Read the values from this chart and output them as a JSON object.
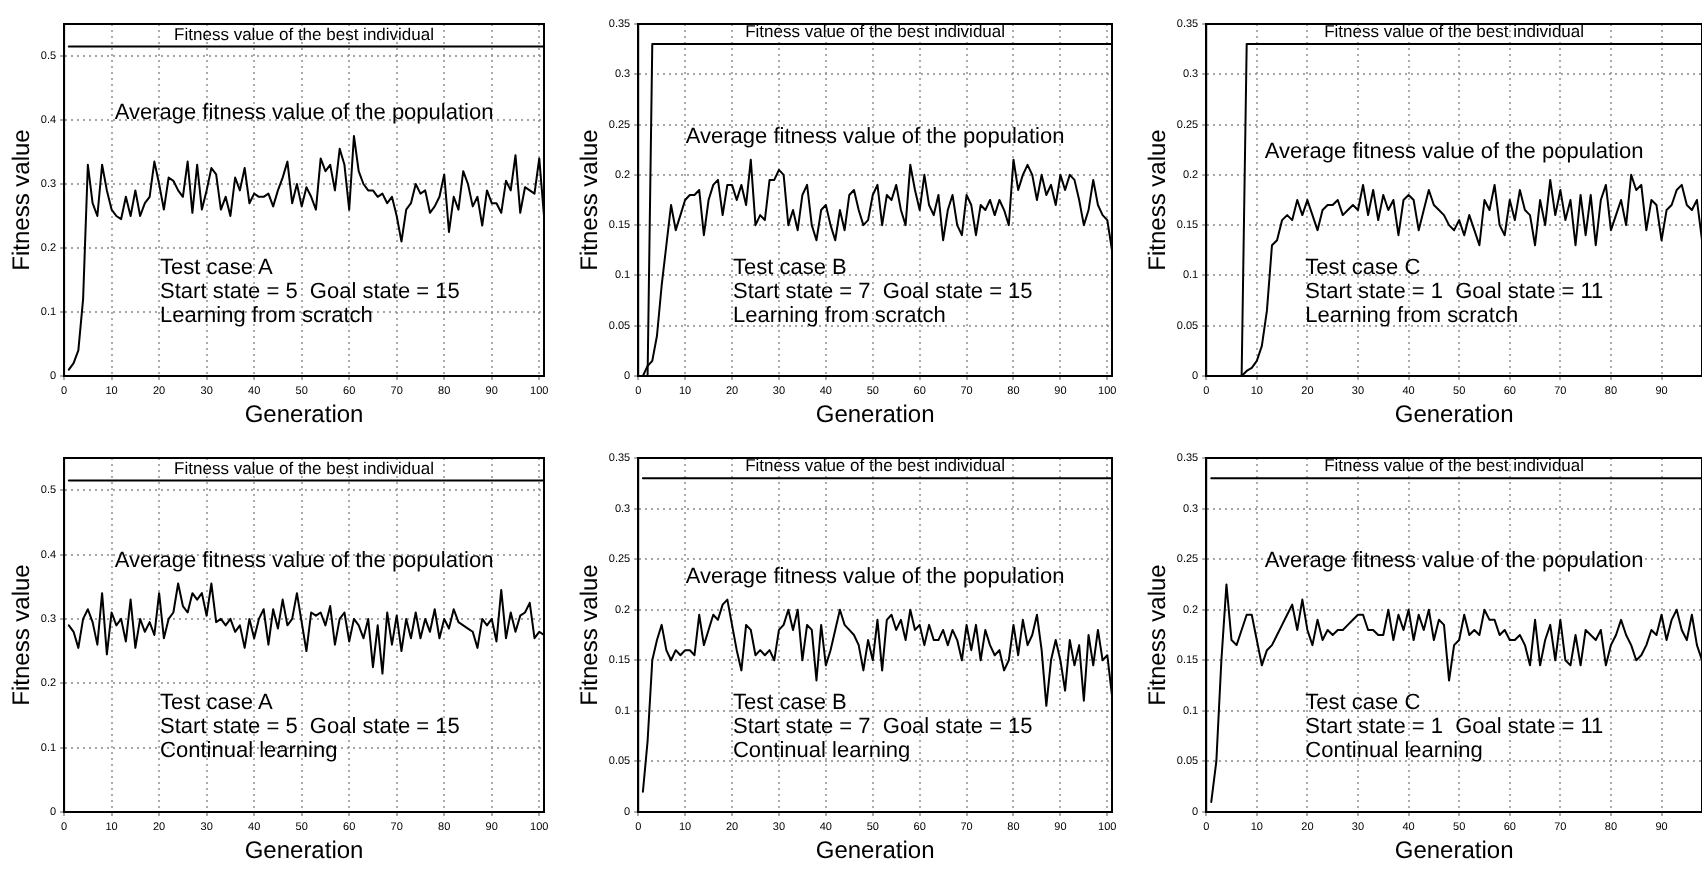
{
  "chart_data": [
    {
      "type": "line",
      "xlabel": "Generation",
      "ylabel": "Fitness value",
      "xlim": [
        0,
        101
      ],
      "ylim": [
        0,
        0.55
      ],
      "xticks": [
        0,
        10,
        20,
        30,
        40,
        50,
        60,
        70,
        80,
        90,
        100
      ],
      "yticks": [
        0,
        0.1,
        0.2,
        0.3,
        0.4,
        0.5
      ],
      "grid": true,
      "annotations": [
        "Test case A",
        "Start state = 5  Goal state = 15",
        "Learning from scratch"
      ],
      "x": [
        1,
        2,
        3,
        4,
        5,
        6,
        7,
        8,
        9,
        10,
        11,
        12,
        13,
        14,
        15,
        16,
        17,
        18,
        19,
        20,
        21,
        22,
        23,
        24,
        25,
        26,
        27,
        28,
        29,
        30,
        31,
        32,
        33,
        34,
        35,
        36,
        37,
        38,
        39,
        40,
        41,
        42,
        43,
        44,
        45,
        46,
        47,
        48,
        49,
        50,
        51,
        52,
        53,
        54,
        55,
        56,
        57,
        58,
        59,
        60,
        61,
        62,
        63,
        64,
        65,
        66,
        67,
        68,
        69,
        70,
        71,
        72,
        73,
        74,
        75,
        76,
        77,
        78,
        79,
        80,
        81,
        82,
        83,
        84,
        85,
        86,
        87,
        88,
        89,
        90,
        91,
        92,
        93,
        94,
        95,
        96,
        97,
        98,
        99,
        100,
        101
      ],
      "series": [
        {
          "name": "Fitness value of the best individual",
          "color": "#000000",
          "x": [
            1,
            101
          ],
          "values": [
            0.515,
            0.515
          ]
        },
        {
          "name": "Average fitness value of the population",
          "color": "#000000",
          "values": [
            0.01,
            0.02,
            0.04,
            0.12,
            0.33,
            0.27,
            0.25,
            0.33,
            0.29,
            0.26,
            0.25,
            0.245,
            0.28,
            0.25,
            0.29,
            0.25,
            0.27,
            0.28,
            0.335,
            0.3,
            0.26,
            0.31,
            0.305,
            0.29,
            0.28,
            0.335,
            0.255,
            0.33,
            0.26,
            0.29,
            0.325,
            0.315,
            0.26,
            0.28,
            0.25,
            0.31,
            0.29,
            0.325,
            0.27,
            0.285,
            0.28,
            0.28,
            0.285,
            0.265,
            0.29,
            0.31,
            0.335,
            0.27,
            0.3,
            0.265,
            0.295,
            0.28,
            0.26,
            0.34,
            0.32,
            0.33,
            0.29,
            0.355,
            0.33,
            0.26,
            0.375,
            0.32,
            0.3,
            0.29,
            0.29,
            0.28,
            0.285,
            0.27,
            0.28,
            0.25,
            0.21,
            0.26,
            0.27,
            0.3,
            0.285,
            0.29,
            0.255,
            0.265,
            0.28,
            0.315,
            0.225,
            0.28,
            0.26,
            0.32,
            0.3,
            0.265,
            0.28,
            0.235,
            0.29,
            0.27,
            0.27,
            0.255,
            0.305,
            0.29,
            0.345,
            0.255,
            0.295,
            0.29,
            0.285,
            0.34,
            0.25
          ]
        }
      ]
    },
    {
      "type": "line",
      "xlabel": "Generation",
      "ylabel": "Fitness value",
      "xlim": [
        0,
        101
      ],
      "ylim": [
        0,
        0.35
      ],
      "xticks": [
        0,
        10,
        20,
        30,
        40,
        50,
        60,
        70,
        80,
        90,
        100
      ],
      "yticks": [
        0,
        0.05,
        0.1,
        0.15,
        0.2,
        0.25,
        0.3,
        0.35
      ],
      "grid": true,
      "annotations": [
        "Test case B",
        "Start state = 7  Goal state = 15",
        "Learning from scratch"
      ],
      "x": [
        1,
        2,
        3,
        4,
        5,
        6,
        7,
        8,
        9,
        10,
        11,
        12,
        13,
        14,
        15,
        16,
        17,
        18,
        19,
        20,
        21,
        22,
        23,
        24,
        25,
        26,
        27,
        28,
        29,
        30,
        31,
        32,
        33,
        34,
        35,
        36,
        37,
        38,
        39,
        40,
        41,
        42,
        43,
        44,
        45,
        46,
        47,
        48,
        49,
        50,
        51,
        52,
        53,
        54,
        55,
        56,
        57,
        58,
        59,
        60,
        61,
        62,
        63,
        64,
        65,
        66,
        67,
        68,
        69,
        70,
        71,
        72,
        73,
        74,
        75,
        76,
        77,
        78,
        79,
        80,
        81,
        82,
        83,
        84,
        85,
        86,
        87,
        88,
        89,
        90,
        91,
        92,
        93,
        94,
        95,
        96,
        97,
        98,
        99,
        100,
        101
      ],
      "series": [
        {
          "name": "Fitness value of the best individual",
          "color": "#000000",
          "x": [
            2,
            3,
            101
          ],
          "values": [
            0,
            0.33,
            0.33
          ]
        },
        {
          "name": "Average fitness value of the population",
          "color": "#000000",
          "values": [
            0,
            0.01,
            0.015,
            0.04,
            0.09,
            0.13,
            0.17,
            0.145,
            0.16,
            0.175,
            0.18,
            0.18,
            0.185,
            0.14,
            0.175,
            0.19,
            0.195,
            0.16,
            0.19,
            0.19,
            0.175,
            0.19,
            0.17,
            0.215,
            0.15,
            0.16,
            0.155,
            0.195,
            0.195,
            0.205,
            0.2,
            0.15,
            0.165,
            0.145,
            0.18,
            0.19,
            0.15,
            0.135,
            0.165,
            0.17,
            0.15,
            0.135,
            0.165,
            0.145,
            0.18,
            0.185,
            0.165,
            0.15,
            0.155,
            0.18,
            0.19,
            0.15,
            0.18,
            0.175,
            0.19,
            0.165,
            0.15,
            0.21,
            0.185,
            0.165,
            0.2,
            0.17,
            0.16,
            0.18,
            0.135,
            0.165,
            0.18,
            0.15,
            0.14,
            0.18,
            0.17,
            0.14,
            0.17,
            0.165,
            0.175,
            0.16,
            0.175,
            0.165,
            0.15,
            0.215,
            0.185,
            0.2,
            0.21,
            0.2,
            0.175,
            0.2,
            0.18,
            0.19,
            0.17,
            0.2,
            0.185,
            0.2,
            0.195,
            0.175,
            0.15,
            0.165,
            0.195,
            0.17,
            0.16,
            0.155,
            0.125
          ]
        }
      ]
    },
    {
      "type": "line",
      "xlabel": "Generation",
      "ylabel": "Fitness value",
      "xlim": [
        0,
        98
      ],
      "ylim": [
        0,
        0.35
      ],
      "xticks": [
        0,
        10,
        20,
        30,
        40,
        50,
        60,
        70,
        80,
        90
      ],
      "yticks": [
        0,
        0.05,
        0.1,
        0.15,
        0.2,
        0.25,
        0.3,
        0.35
      ],
      "grid": true,
      "annotations": [
        "Test case C",
        "Start state = 1  Goal state = 11",
        "Learning from scratch"
      ],
      "x": [
        7,
        8,
        9,
        10,
        11,
        12,
        13,
        14,
        15,
        16,
        17,
        18,
        19,
        20,
        21,
        22,
        23,
        24,
        25,
        26,
        27,
        28,
        29,
        30,
        31,
        32,
        33,
        34,
        35,
        36,
        37,
        38,
        39,
        40,
        41,
        42,
        43,
        44,
        45,
        46,
        47,
        48,
        49,
        50,
        51,
        52,
        53,
        54,
        55,
        56,
        57,
        58,
        59,
        60,
        61,
        62,
        63,
        64,
        65,
        66,
        67,
        68,
        69,
        70,
        71,
        72,
        73,
        74,
        75,
        76,
        77,
        78,
        79,
        80,
        81,
        82,
        83,
        84,
        85,
        86,
        87,
        88,
        89,
        90,
        91,
        92,
        93,
        94,
        95,
        96,
        97,
        98
      ],
      "series": [
        {
          "name": "Fitness value of the best individual",
          "color": "#000000",
          "x": [
            7,
            8,
            98
          ],
          "values": [
            0,
            0.33,
            0.33
          ]
        },
        {
          "name": "Average fitness value of the population",
          "color": "#000000",
          "values": [
            0,
            0.005,
            0.008,
            0.015,
            0.03,
            0.065,
            0.13,
            0.135,
            0.155,
            0.16,
            0.155,
            0.175,
            0.16,
            0.175,
            0.16,
            0.145,
            0.165,
            0.17,
            0.17,
            0.175,
            0.16,
            0.165,
            0.17,
            0.165,
            0.19,
            0.16,
            0.185,
            0.155,
            0.18,
            0.165,
            0.175,
            0.14,
            0.175,
            0.18,
            0.175,
            0.145,
            0.165,
            0.185,
            0.17,
            0.165,
            0.16,
            0.15,
            0.145,
            0.155,
            0.14,
            0.16,
            0.145,
            0.13,
            0.175,
            0.165,
            0.19,
            0.15,
            0.14,
            0.175,
            0.155,
            0.185,
            0.165,
            0.16,
            0.13,
            0.175,
            0.15,
            0.195,
            0.16,
            0.185,
            0.155,
            0.175,
            0.13,
            0.18,
            0.14,
            0.18,
            0.13,
            0.175,
            0.19,
            0.145,
            0.16,
            0.175,
            0.15,
            0.2,
            0.185,
            0.19,
            0.145,
            0.175,
            0.17,
            0.135,
            0.165,
            0.17,
            0.185,
            0.19,
            0.17,
            0.165,
            0.175,
            0.135
          ]
        }
      ]
    },
    {
      "type": "line",
      "xlabel": "Generation",
      "ylabel": "Fitness value",
      "xlim": [
        0,
        101
      ],
      "ylim": [
        0,
        0.55
      ],
      "xticks": [
        0,
        10,
        20,
        30,
        40,
        50,
        60,
        70,
        80,
        90,
        100
      ],
      "yticks": [
        0,
        0.1,
        0.2,
        0.3,
        0.4,
        0.5
      ],
      "grid": true,
      "annotations": [
        "Test case A",
        "Start state = 5  Goal state = 15",
        "Continual learning"
      ],
      "x": [
        1,
        2,
        3,
        4,
        5,
        6,
        7,
        8,
        9,
        10,
        11,
        12,
        13,
        14,
        15,
        16,
        17,
        18,
        19,
        20,
        21,
        22,
        23,
        24,
        25,
        26,
        27,
        28,
        29,
        30,
        31,
        32,
        33,
        34,
        35,
        36,
        37,
        38,
        39,
        40,
        41,
        42,
        43,
        44,
        45,
        46,
        47,
        48,
        49,
        50,
        51,
        52,
        53,
        54,
        55,
        56,
        57,
        58,
        59,
        60,
        61,
        62,
        63,
        64,
        65,
        66,
        67,
        68,
        69,
        70,
        71,
        72,
        73,
        74,
        75,
        76,
        77,
        78,
        79,
        80,
        81,
        82,
        83,
        84,
        85,
        86,
        87,
        88,
        89,
        90,
        91,
        92,
        93,
        94,
        95,
        96,
        97,
        98,
        99,
        100,
        101
      ],
      "series": [
        {
          "name": "Fitness value of the best individual",
          "color": "#000000",
          "x": [
            1,
            101
          ],
          "values": [
            0.515,
            0.515
          ]
        },
        {
          "name": "Average fitness value of the population",
          "color": "#000000",
          "values": [
            0.29,
            0.28,
            0.255,
            0.3,
            0.315,
            0.295,
            0.26,
            0.34,
            0.245,
            0.31,
            0.29,
            0.3,
            0.265,
            0.33,
            0.255,
            0.3,
            0.28,
            0.295,
            0.275,
            0.34,
            0.27,
            0.3,
            0.31,
            0.355,
            0.32,
            0.31,
            0.34,
            0.33,
            0.34,
            0.305,
            0.355,
            0.295,
            0.3,
            0.29,
            0.3,
            0.28,
            0.29,
            0.255,
            0.3,
            0.27,
            0.3,
            0.315,
            0.26,
            0.315,
            0.285,
            0.33,
            0.29,
            0.3,
            0.34,
            0.295,
            0.25,
            0.31,
            0.305,
            0.31,
            0.29,
            0.32,
            0.26,
            0.3,
            0.31,
            0.265,
            0.3,
            0.29,
            0.27,
            0.3,
            0.225,
            0.29,
            0.215,
            0.31,
            0.26,
            0.305,
            0.25,
            0.3,
            0.27,
            0.31,
            0.27,
            0.3,
            0.28,
            0.315,
            0.27,
            0.3,
            0.285,
            0.315,
            0.295,
            0.29,
            0.285,
            0.28,
            0.255,
            0.3,
            0.29,
            0.3,
            0.265,
            0.345,
            0.27,
            0.31,
            0.28,
            0.305,
            0.31,
            0.325,
            0.27,
            0.28,
            0.275
          ]
        }
      ]
    },
    {
      "type": "line",
      "xlabel": "Generation",
      "ylabel": "Fitness value",
      "xlim": [
        0,
        101
      ],
      "ylim": [
        0,
        0.35
      ],
      "xticks": [
        0,
        10,
        20,
        30,
        40,
        50,
        60,
        70,
        80,
        90,
        100
      ],
      "yticks": [
        0,
        0.05,
        0.1,
        0.15,
        0.2,
        0.25,
        0.3,
        0.35
      ],
      "grid": true,
      "annotations": [
        "Test case B",
        "Start state = 7  Goal state = 15",
        "Continual learning"
      ],
      "x": [
        1,
        2,
        3,
        4,
        5,
        6,
        7,
        8,
        9,
        10,
        11,
        12,
        13,
        14,
        15,
        16,
        17,
        18,
        19,
        20,
        21,
        22,
        23,
        24,
        25,
        26,
        27,
        28,
        29,
        30,
        31,
        32,
        33,
        34,
        35,
        36,
        37,
        38,
        39,
        40,
        41,
        42,
        43,
        44,
        45,
        46,
        47,
        48,
        49,
        50,
        51,
        52,
        53,
        54,
        55,
        56,
        57,
        58,
        59,
        60,
        61,
        62,
        63,
        64,
        65,
        66,
        67,
        68,
        69,
        70,
        71,
        72,
        73,
        74,
        75,
        76,
        77,
        78,
        79,
        80,
        81,
        82,
        83,
        84,
        85,
        86,
        87,
        88,
        89,
        90,
        91,
        92,
        93,
        94,
        95,
        96,
        97,
        98,
        99,
        100,
        101
      ],
      "series": [
        {
          "name": "Fitness value of the best individual",
          "color": "#000000",
          "x": [
            1,
            101
          ],
          "values": [
            0.33,
            0.33
          ]
        },
        {
          "name": "Average fitness value of the population",
          "color": "#000000",
          "values": [
            0.02,
            0.07,
            0.15,
            0.17,
            0.185,
            0.16,
            0.15,
            0.16,
            0.155,
            0.16,
            0.16,
            0.155,
            0.195,
            0.165,
            0.18,
            0.195,
            0.19,
            0.205,
            0.21,
            0.185,
            0.16,
            0.14,
            0.185,
            0.18,
            0.155,
            0.16,
            0.155,
            0.16,
            0.15,
            0.18,
            0.185,
            0.2,
            0.18,
            0.2,
            0.15,
            0.185,
            0.18,
            0.13,
            0.185,
            0.145,
            0.16,
            0.18,
            0.2,
            0.185,
            0.18,
            0.175,
            0.165,
            0.14,
            0.17,
            0.15,
            0.19,
            0.14,
            0.19,
            0.195,
            0.18,
            0.19,
            0.17,
            0.2,
            0.18,
            0.185,
            0.165,
            0.185,
            0.17,
            0.17,
            0.18,
            0.165,
            0.18,
            0.17,
            0.15,
            0.185,
            0.16,
            0.185,
            0.15,
            0.18,
            0.165,
            0.155,
            0.16,
            0.14,
            0.15,
            0.185,
            0.155,
            0.19,
            0.165,
            0.175,
            0.195,
            0.16,
            0.105,
            0.15,
            0.17,
            0.15,
            0.12,
            0.17,
            0.145,
            0.165,
            0.11,
            0.175,
            0.145,
            0.18,
            0.15,
            0.155,
            0.115
          ]
        }
      ]
    },
    {
      "type": "line",
      "xlabel": "Generation",
      "ylabel": "Fitness value",
      "xlim": [
        0,
        98
      ],
      "ylim": [
        0,
        0.35
      ],
      "xticks": [
        0,
        10,
        20,
        30,
        40,
        50,
        60,
        70,
        80,
        90
      ],
      "yticks": [
        0,
        0.05,
        0.1,
        0.15,
        0.2,
        0.25,
        0.3,
        0.35
      ],
      "grid": true,
      "annotations": [
        "Test case C",
        "Start state = 1  Goal state = 11",
        "Continual learning"
      ],
      "x": [
        1,
        2,
        3,
        4,
        5,
        6,
        7,
        8,
        9,
        10,
        11,
        12,
        13,
        14,
        15,
        16,
        17,
        18,
        19,
        20,
        21,
        22,
        23,
        24,
        25,
        26,
        27,
        28,
        29,
        30,
        31,
        32,
        33,
        34,
        35,
        36,
        37,
        38,
        39,
        40,
        41,
        42,
        43,
        44,
        45,
        46,
        47,
        48,
        49,
        50,
        51,
        52,
        53,
        54,
        55,
        56,
        57,
        58,
        59,
        60,
        61,
        62,
        63,
        64,
        65,
        66,
        67,
        68,
        69,
        70,
        71,
        72,
        73,
        74,
        75,
        76,
        77,
        78,
        79,
        80,
        81,
        82,
        83,
        84,
        85,
        86,
        87,
        88,
        89,
        90,
        91,
        92,
        93,
        94,
        95,
        96,
        97,
        98
      ],
      "series": [
        {
          "name": "Fitness value of the best individual",
          "color": "#000000",
          "x": [
            1,
            98
          ],
          "values": [
            0.33,
            0.33
          ]
        },
        {
          "name": "Average fitness value of the population",
          "color": "#000000",
          "values": [
            0.01,
            0.05,
            0.15,
            0.225,
            0.17,
            0.165,
            0.18,
            0.195,
            0.195,
            0.17,
            0.145,
            0.16,
            0.165,
            0.175,
            0.185,
            0.195,
            0.205,
            0.18,
            0.21,
            0.18,
            0.165,
            0.19,
            0.17,
            0.18,
            0.175,
            0.18,
            0.18,
            0.185,
            0.19,
            0.195,
            0.195,
            0.18,
            0.18,
            0.175,
            0.175,
            0.2,
            0.17,
            0.195,
            0.18,
            0.2,
            0.17,
            0.195,
            0.18,
            0.2,
            0.17,
            0.19,
            0.185,
            0.13,
            0.165,
            0.17,
            0.195,
            0.175,
            0.18,
            0.175,
            0.2,
            0.19,
            0.19,
            0.175,
            0.18,
            0.17,
            0.17,
            0.175,
            0.165,
            0.145,
            0.19,
            0.145,
            0.17,
            0.185,
            0.15,
            0.19,
            0.15,
            0.145,
            0.175,
            0.145,
            0.18,
            0.175,
            0.17,
            0.18,
            0.145,
            0.165,
            0.175,
            0.19,
            0.175,
            0.165,
            0.15,
            0.155,
            0.165,
            0.18,
            0.175,
            0.195,
            0.17,
            0.19,
            0.2,
            0.18,
            0.17,
            0.195,
            0.165,
            0.15
          ]
        }
      ]
    }
  ]
}
